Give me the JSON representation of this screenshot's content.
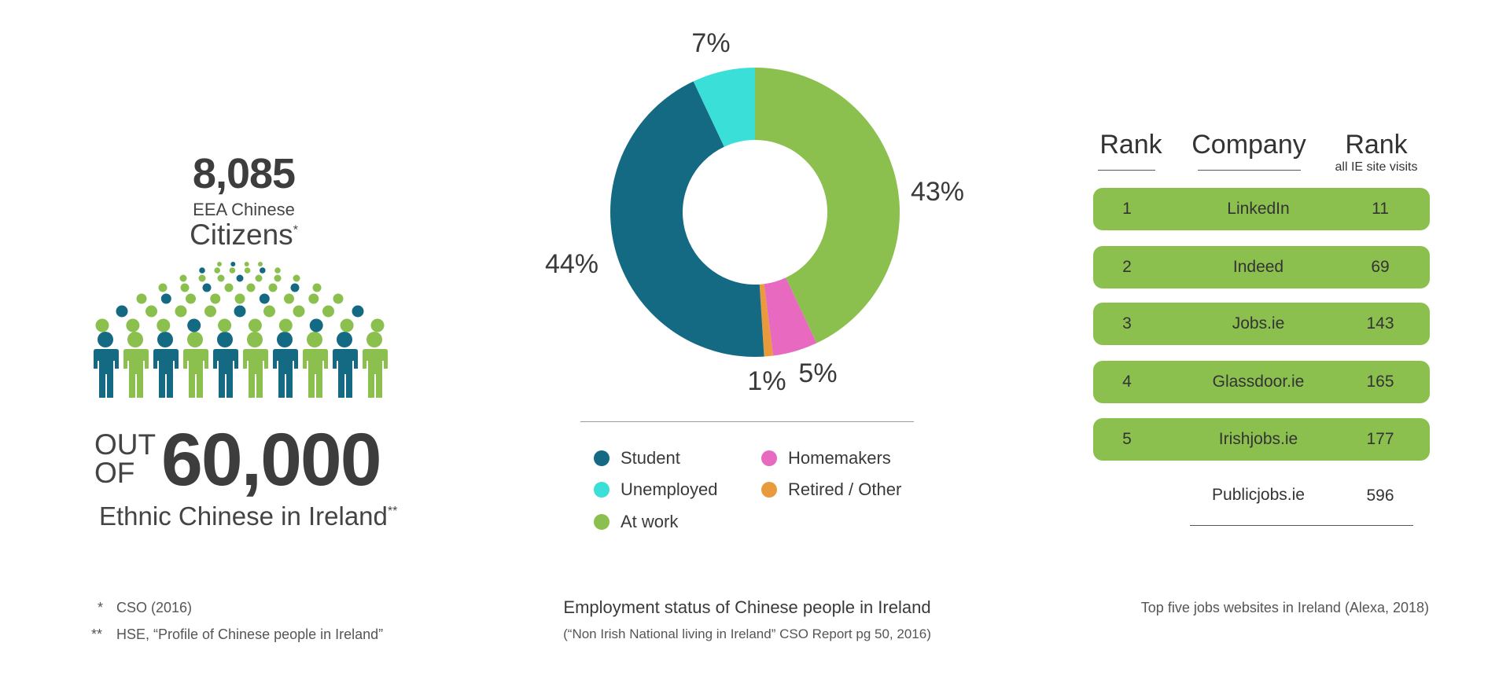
{
  "colors": {
    "teal": "#146a83",
    "cyan": "#3ae0d8",
    "green": "#8bc04f",
    "pink": "#e769c0",
    "orange": "#e99a3c",
    "text": "#3e3e3e"
  },
  "stat": {
    "value": "8,085",
    "line1": "EEA Chinese",
    "line2": "Citizens",
    "mark": "*"
  },
  "population": {
    "out": "OUT",
    "of": "OF",
    "value": "60,000",
    "label": "Ethnic Chinese in Ireland",
    "mark": "**"
  },
  "chart_data": {
    "type": "pie",
    "title": "Employment status of Chinese people in Ireland",
    "subtitle": "(“Non Irish National living in Ireland” CSO Report pg 50, 2016)",
    "categories": [
      "At work",
      "Homemakers",
      "Retired / Other",
      "Student",
      "Unemployed"
    ],
    "values": [
      43,
      5,
      1,
      44,
      7
    ],
    "labels": [
      "43%",
      "5%",
      "1%",
      "44%",
      "7%"
    ],
    "colors": [
      "#8bc04f",
      "#e769c0",
      "#e99a3c",
      "#146a83",
      "#3ae0d8"
    ],
    "legend": [
      {
        "label": "Student",
        "color": "#146a83"
      },
      {
        "label": "Homemakers",
        "color": "#e769c0"
      },
      {
        "label": "Unemployed",
        "color": "#3ae0d8"
      },
      {
        "label": "Retired / Other",
        "color": "#e99a3c"
      },
      {
        "label": "At work",
        "color": "#8bc04f"
      }
    ]
  },
  "table": {
    "headers": {
      "rank": "Rank",
      "company": "Company",
      "rank2": "Rank",
      "rank2_note": "all IE site visits"
    },
    "rows": [
      {
        "rank": "1",
        "company": "LinkedIn",
        "site_rank": "11"
      },
      {
        "rank": "2",
        "company": "Indeed",
        "site_rank": "69"
      },
      {
        "rank": "3",
        "company": "Jobs.ie",
        "site_rank": "143"
      },
      {
        "rank": "4",
        "company": "Glassdoor.ie",
        "site_rank": "165"
      },
      {
        "rank": "5",
        "company": "Irishjobs.ie",
        "site_rank": "177"
      }
    ],
    "extra": {
      "company": "Publicjobs.ie",
      "site_rank": "596"
    },
    "caption": "Top five jobs websites in Ireland (Alexa, 2018)"
  },
  "footnotes": [
    {
      "mark": "*",
      "text": "CSO (2016)"
    },
    {
      "mark": "**",
      "text": "HSE, “Profile of Chinese people in Ireland”"
    }
  ]
}
